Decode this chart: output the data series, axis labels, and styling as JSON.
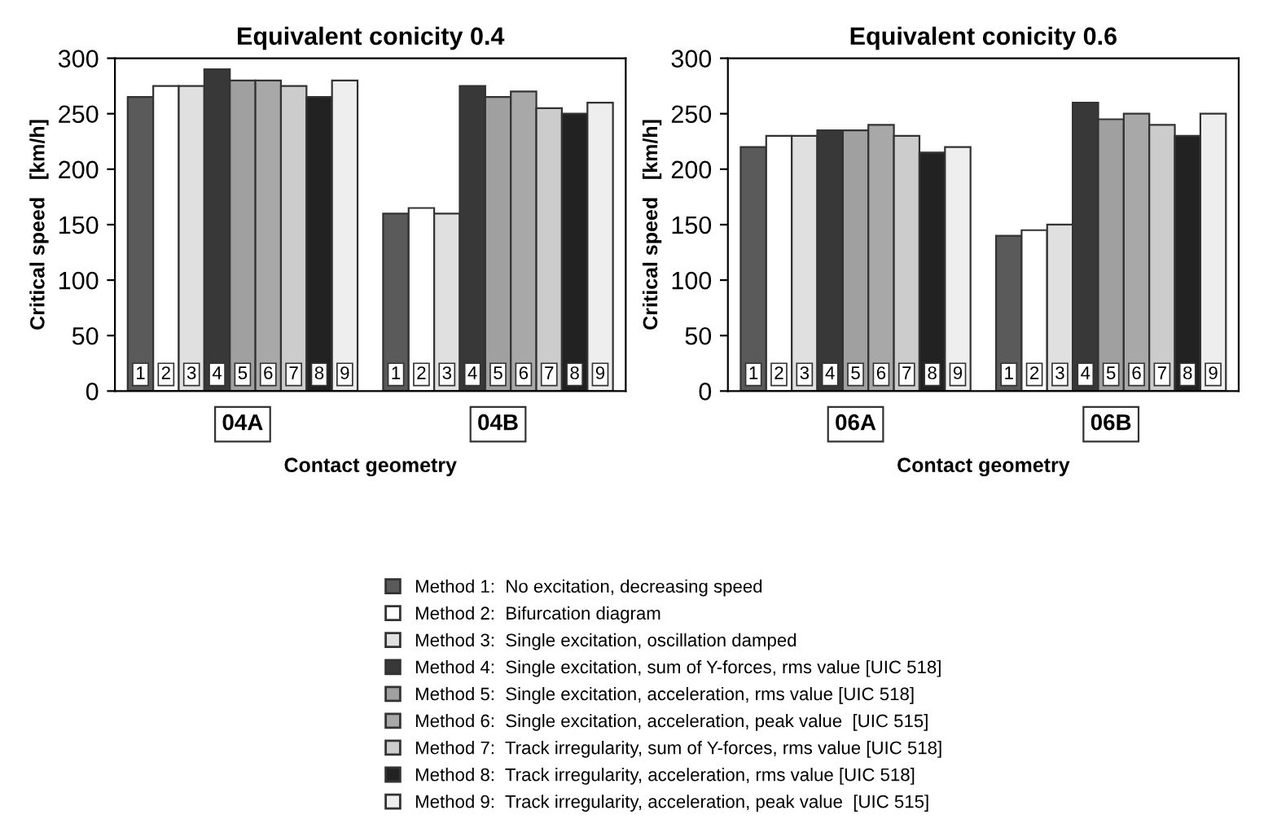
{
  "chart_data": [
    {
      "type": "bar",
      "title": "Equivalent conicity 0.4",
      "xlabel": "Contact geometry",
      "ylabel": "Critical speed   [km/h]",
      "categories": [
        "04A",
        "04B"
      ],
      "ylim": [
        0,
        300
      ],
      "yticks": [
        0,
        50,
        100,
        150,
        200,
        250,
        300
      ],
      "grid": false,
      "legend": "bottom",
      "annotations": [
        "1",
        "2",
        "3",
        "4",
        "5",
        "6",
        "7",
        "8",
        "9"
      ],
      "series": [
        {
          "name": "Method 1:  No excitation, decreasing speed",
          "color": "#5a5a5a",
          "values": [
            265,
            160
          ]
        },
        {
          "name": "Method 2:  Bifurcation diagram",
          "color": "#ffffff",
          "values": [
            275,
            165
          ]
        },
        {
          "name": "Method 3:  Single excitation, oscillation damped",
          "color": "#e0e0e0",
          "values": [
            275,
            160
          ]
        },
        {
          "name": "Method 4:  Single excitation, sum of Y-forces, rms value [UIC 518]",
          "color": "#383838",
          "values": [
            290,
            275
          ]
        },
        {
          "name": "Method 5:  Single excitation, acceleration, rms value [UIC 518]",
          "color": "#a0a0a0",
          "values": [
            280,
            265
          ]
        },
        {
          "name": "Method 6:  Single excitation, acceleration, peak value  [UIC 515]",
          "color": "#a8a8a8",
          "values": [
            280,
            270
          ]
        },
        {
          "name": "Method 7:  Track irregularity, sum of Y-forces, rms value [UIC 518]",
          "color": "#cccccc",
          "values": [
            275,
            255
          ]
        },
        {
          "name": "Method 8:  Track irregularity, acceleration, rms value [UIC 518]",
          "color": "#222222",
          "values": [
            265,
            250
          ]
        },
        {
          "name": "Method 9:  Track irregularity, acceleration, peak value  [UIC 515]",
          "color": "#eeeeee",
          "values": [
            280,
            260
          ]
        }
      ]
    },
    {
      "type": "bar",
      "title": "Equivalent conicity 0.6",
      "xlabel": "Contact geometry",
      "ylabel": "Critical speed   [km/h]",
      "categories": [
        "06A",
        "06B"
      ],
      "ylim": [
        0,
        300
      ],
      "yticks": [
        0,
        50,
        100,
        150,
        200,
        250,
        300
      ],
      "grid": false,
      "annotations": [
        "1",
        "2",
        "3",
        "4",
        "5",
        "6",
        "7",
        "8",
        "9"
      ],
      "series": [
        {
          "color": "#5a5a5a",
          "values": [
            220,
            140
          ]
        },
        {
          "color": "#ffffff",
          "values": [
            230,
            145
          ]
        },
        {
          "color": "#e0e0e0",
          "values": [
            230,
            150
          ]
        },
        {
          "color": "#383838",
          "values": [
            235,
            260
          ]
        },
        {
          "color": "#a0a0a0",
          "values": [
            235,
            245
          ]
        },
        {
          "color": "#a8a8a8",
          "values": [
            240,
            250
          ]
        },
        {
          "color": "#cccccc",
          "values": [
            230,
            240
          ]
        },
        {
          "color": "#222222",
          "values": [
            215,
            230
          ]
        },
        {
          "color": "#eeeeee",
          "values": [
            220,
            250
          ]
        }
      ]
    }
  ]
}
